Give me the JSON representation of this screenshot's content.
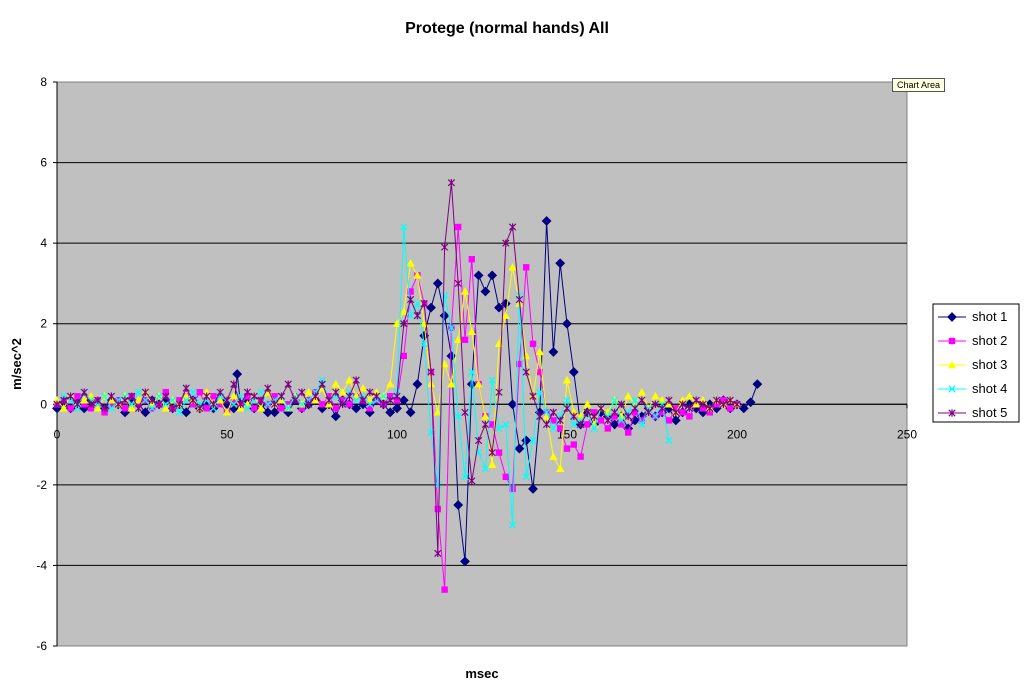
{
  "tooltip": "Chart Area",
  "chart_data": {
    "type": "line",
    "title": "Protege (normal hands) All",
    "xlabel": "msec",
    "ylabel": "m/sec^2",
    "xlim": [
      0,
      250
    ],
    "ylim": [
      -6,
      8
    ],
    "x_ticks": [
      0,
      50,
      100,
      150,
      200,
      250
    ],
    "y_ticks": [
      -6,
      -4,
      -2,
      0,
      2,
      4,
      6,
      8
    ],
    "grid": "horizontal",
    "legend_position": "right",
    "series": [
      {
        "name": "shot 1",
        "color": "#000080",
        "marker": "diamond",
        "x": [
          0,
          2,
          4,
          6,
          8,
          10,
          12,
          14,
          16,
          18,
          20,
          22,
          24,
          26,
          28,
          30,
          32,
          34,
          36,
          38,
          40,
          42,
          44,
          46,
          48,
          50,
          52,
          53,
          54,
          56,
          58,
          60,
          62,
          64,
          66,
          68,
          70,
          72,
          74,
          76,
          78,
          80,
          82,
          84,
          86,
          88,
          90,
          92,
          94,
          96,
          98,
          100,
          102,
          104,
          106,
          108,
          110,
          112,
          114,
          116,
          118,
          120,
          122,
          124,
          126,
          128,
          130,
          132,
          134,
          136,
          138,
          140,
          142,
          144,
          146,
          148,
          150,
          152,
          154,
          156,
          158,
          160,
          162,
          164,
          166,
          168,
          170,
          172,
          174,
          176,
          178,
          180,
          182,
          184,
          186,
          188,
          190,
          192,
          194,
          196,
          198,
          200,
          202,
          204,
          206
        ],
        "y": [
          -0.1,
          0,
          -0.1,
          0.1,
          -0.1,
          0.1,
          0,
          -0.1,
          0.1,
          0,
          -0.2,
          0.1,
          0,
          -0.2,
          0.1,
          0,
          0.1,
          -0.1,
          0,
          -0.2,
          0.1,
          -0.1,
          0,
          -0.1,
          0.1,
          0,
          -0.1,
          0.75,
          0,
          0.1,
          -0.1,
          0,
          -0.2,
          -0.2,
          0,
          -0.2,
          0.1,
          -0.1,
          0,
          0.1,
          -0.1,
          0,
          -0.3,
          0.1,
          0,
          -0.1,
          0,
          -0.2,
          0.1,
          0,
          -0.2,
          -0.1,
          0.1,
          -0.2,
          0.5,
          1.7,
          2.4,
          3.0,
          2.2,
          1.2,
          -2.5,
          -3.9,
          0.5,
          3.2,
          2.8,
          3.2,
          2.4,
          2.5,
          0,
          -1.1,
          -0.9,
          -2.1,
          -0.2,
          4.55,
          1.3,
          3.5,
          2.0,
          0.8,
          -0.5,
          -0.2,
          -0.5,
          -0.2,
          -0.3,
          -0.5,
          -0.3,
          -0.6,
          -0.4,
          -0.3,
          -0.1,
          -0.3,
          -0.2,
          -0.1,
          -0.4,
          -0.2,
          0,
          -0.1,
          -0.2,
          0,
          -0.1,
          0.1,
          -0.1,
          0,
          -0.1,
          0.05,
          0.5
        ]
      },
      {
        "name": "shot 2",
        "color": "#ff00ff",
        "marker": "square",
        "x": [
          0,
          2,
          4,
          6,
          8,
          10,
          12,
          14,
          16,
          18,
          20,
          22,
          24,
          26,
          28,
          30,
          32,
          34,
          36,
          38,
          40,
          42,
          44,
          46,
          48,
          50,
          52,
          54,
          56,
          58,
          60,
          62,
          64,
          66,
          68,
          70,
          72,
          74,
          76,
          78,
          80,
          82,
          84,
          86,
          88,
          90,
          92,
          94,
          96,
          98,
          100,
          102,
          104,
          106,
          108,
          110,
          112,
          114,
          116,
          118,
          120,
          122,
          124,
          126,
          128,
          130,
          132,
          134,
          136,
          138,
          140,
          142,
          144,
          146,
          148,
          150,
          152,
          154,
          156,
          158,
          160,
          162,
          164,
          166,
          168,
          170,
          172,
          174,
          176,
          178,
          180,
          182,
          184,
          186,
          188,
          190,
          192,
          194,
          196,
          198,
          200
        ],
        "y": [
          0,
          0.1,
          -0.1,
          0.2,
          0,
          -0.1,
          0.1,
          -0.2,
          0,
          0.1,
          -0.1,
          0.2,
          0,
          0.1,
          -0.1,
          0,
          0.3,
          -0.1,
          0.1,
          0.2,
          0,
          0.3,
          -0.1,
          0.2,
          0,
          -0.2,
          0.1,
          0,
          0.2,
          -0.1,
          0.1,
          0,
          0.2,
          -0.1,
          0,
          0.2,
          -0.1,
          0.1,
          0.3,
          0,
          0.2,
          -0.1,
          0.1,
          0,
          0.2,
          0.1,
          -0.1,
          0.1,
          0,
          0.2,
          0.1,
          1.2,
          2.8,
          3.2,
          2.5,
          0.8,
          -2.6,
          -4.6,
          1.9,
          4.4,
          1.6,
          3.6,
          0.5,
          -0.3,
          -0.5,
          -1.2,
          -1.8,
          -2.1,
          1.0,
          3.4,
          1.5,
          0.8,
          -0.2,
          -0.4,
          -0.6,
          -1.1,
          -1.0,
          -1.3,
          -0.5,
          -0.2,
          -0.4,
          -0.6,
          -0.3,
          -0.5,
          -0.7,
          -0.2,
          -0.4,
          -0.1,
          -0.3,
          -0.2,
          -0.4,
          -0.1,
          -0.2,
          -0.3,
          0,
          -0.1,
          -0.2,
          0,
          0.1,
          -0.1,
          0
        ]
      },
      {
        "name": "shot 3",
        "color": "#ffff00",
        "marker": "triangle",
        "x": [
          0,
          2,
          4,
          6,
          8,
          10,
          12,
          14,
          16,
          18,
          20,
          22,
          24,
          26,
          28,
          30,
          32,
          34,
          36,
          38,
          40,
          42,
          44,
          46,
          48,
          50,
          52,
          54,
          56,
          58,
          60,
          62,
          64,
          66,
          68,
          70,
          72,
          74,
          76,
          78,
          80,
          82,
          84,
          86,
          88,
          90,
          92,
          94,
          96,
          98,
          100,
          102,
          104,
          106,
          108,
          110,
          112,
          114,
          116,
          118,
          120,
          122,
          124,
          126,
          128,
          130,
          132,
          134,
          136,
          138,
          140,
          142,
          144,
          146,
          148,
          150,
          152,
          154,
          156,
          158,
          160,
          162,
          164,
          166,
          168,
          170,
          172,
          174,
          176,
          178,
          180,
          182,
          184,
          186,
          188,
          190,
          192,
          194,
          196,
          198,
          200
        ],
        "y": [
          0.1,
          -0.1,
          0.2,
          0,
          0.1,
          0.2,
          -0.1,
          0.2,
          0.1,
          0,
          0.2,
          -0.1,
          0.1,
          0.3,
          0,
          0.2,
          -0.1,
          0.1,
          0,
          0.2,
          0.1,
          -0.1,
          0.3,
          0,
          0.1,
          -0.2,
          0.2,
          -0.1,
          0,
          0.2,
          -0.1,
          0.3,
          0,
          0.1,
          -0.1,
          0.2,
          0,
          0.3,
          0.1,
          0.4,
          0,
          0.5,
          0.3,
          0.6,
          0.2,
          0.4,
          0.1,
          0.3,
          0.2,
          0.5,
          2.0,
          2.3,
          3.5,
          3.2,
          2.0,
          0.5,
          -0.2,
          1.0,
          0.5,
          1.6,
          2.8,
          1.8,
          0.5,
          -0.3,
          -1.5,
          1.5,
          2.2,
          3.4,
          2.5,
          1.2,
          0.2,
          1.3,
          -0.3,
          -1.3,
          -1.6,
          0.6,
          -0.2,
          -0.3,
          0,
          -0.5,
          -0.1,
          -0.2,
          0.1,
          -0.3,
          0.2,
          0,
          0.3,
          -0.1,
          0.2,
          0.1,
          0,
          -0.2,
          0.1,
          0.2,
          0,
          0.1,
          -0.1,
          0.1,
          0,
          0.1,
          0
        ]
      },
      {
        "name": "shot 4",
        "color": "#00ffff",
        "marker": "x",
        "x": [
          0,
          2,
          4,
          6,
          8,
          10,
          12,
          14,
          16,
          18,
          20,
          22,
          24,
          26,
          28,
          30,
          32,
          34,
          36,
          38,
          40,
          42,
          44,
          46,
          48,
          50,
          52,
          54,
          56,
          58,
          60,
          62,
          64,
          66,
          68,
          70,
          72,
          74,
          76,
          78,
          80,
          82,
          84,
          86,
          88,
          90,
          92,
          94,
          96,
          98,
          100,
          102,
          104,
          106,
          108,
          110,
          112,
          114,
          116,
          118,
          120,
          122,
          124,
          126,
          128,
          130,
          132,
          134,
          136,
          138,
          140,
          142,
          144,
          146,
          148,
          150,
          152,
          154,
          156,
          158,
          160,
          162,
          164,
          166,
          168,
          170,
          172,
          174,
          176,
          178,
          180
        ],
        "y": [
          0,
          0.2,
          0.1,
          -0.1,
          0.3,
          0.1,
          0,
          0.2,
          -0.1,
          0.1,
          0.2,
          0,
          0.3,
          0.1,
          -0.1,
          0.2,
          0,
          0.1,
          -0.2,
          0.1,
          0.3,
          0,
          0.1,
          -0.1,
          0.2,
          0.1,
          0,
          0.2,
          -0.1,
          0.1,
          0.3,
          0,
          0.1,
          0.2,
          -0.1,
          0.2,
          0,
          0.1,
          0.3,
          0.6,
          0.1,
          0.2,
          0,
          0.3,
          0.1,
          0.2,
          0,
          0.1,
          0.2,
          0.1,
          0.3,
          4.4,
          2.2,
          2.5,
          1.5,
          -0.7,
          -2.0,
          2.7,
          1.9,
          -0.3,
          -1.8,
          0.8,
          -1.2,
          -1.6,
          0.6,
          -0.6,
          -0.5,
          -3.0,
          2.7,
          -1.8,
          -0.9,
          0.3,
          -0.2,
          -0.6,
          -0.3,
          0.1,
          -0.5,
          -0.4,
          -0.2,
          -0.6,
          -0.1,
          -0.3,
          0.1,
          -0.4,
          -0.2,
          0.1,
          -0.5,
          -0.1,
          -0.3,
          0,
          -0.9
        ]
      },
      {
        "name": "shot 5",
        "color": "#800080",
        "marker": "asterisk",
        "x": [
          0,
          2,
          4,
          6,
          8,
          10,
          12,
          14,
          16,
          18,
          20,
          22,
          24,
          26,
          28,
          30,
          32,
          34,
          36,
          38,
          40,
          42,
          44,
          46,
          48,
          50,
          52,
          54,
          56,
          58,
          60,
          62,
          64,
          66,
          68,
          70,
          72,
          74,
          76,
          78,
          80,
          82,
          84,
          86,
          88,
          90,
          92,
          94,
          96,
          98,
          100,
          102,
          104,
          106,
          108,
          110,
          112,
          114,
          116,
          118,
          120,
          122,
          124,
          126,
          128,
          130,
          132,
          134,
          136,
          138,
          140,
          142,
          144,
          146,
          148,
          150,
          152,
          154,
          156,
          158,
          160,
          162,
          164,
          166,
          168,
          170,
          172,
          174,
          176,
          178,
          180,
          182,
          184,
          186,
          188,
          190,
          192,
          194,
          196,
          198,
          200
        ],
        "y": [
          0,
          0.1,
          0.2,
          0,
          0.3,
          0,
          0.1,
          -0.1,
          0.2,
          0,
          0.1,
          0.2,
          -0.1,
          0.3,
          0.1,
          0,
          0.2,
          -0.1,
          0,
          0.4,
          0.1,
          -0.1,
          0.2,
          0,
          0.3,
          0.1,
          0.5,
          0,
          0.3,
          0.2,
          0.1,
          0.4,
          0,
          0.2,
          0.5,
          0.1,
          0.3,
          0,
          0.2,
          0.5,
          0.1,
          0.3,
          0,
          0.2,
          0.6,
          0.1,
          0.3,
          0.2,
          0,
          0.1,
          0.2,
          2.0,
          2.6,
          2.2,
          2.5,
          0.8,
          -3.7,
          3.9,
          5.5,
          3.0,
          -0.2,
          -1.9,
          -0.9,
          -0.5,
          -1.2,
          0.3,
          4.0,
          4.4,
          2.6,
          0.8,
          0.2,
          -0.3,
          -0.5,
          -0.2,
          -0.4,
          -0.1,
          -0.3,
          -0.5,
          -0.2,
          -0.3,
          -0.1,
          -0.4,
          -0.2,
          0,
          -0.3,
          -0.1,
          0.1,
          -0.2,
          0,
          -0.1,
          0.1,
          -0.2,
          0,
          -0.1,
          0.1,
          0,
          -0.1,
          0.1,
          0,
          0.1,
          0
        ]
      }
    ]
  }
}
